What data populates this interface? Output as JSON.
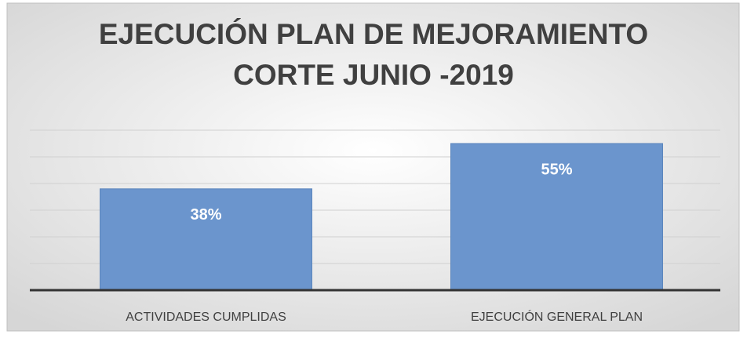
{
  "chart_data": {
    "type": "bar",
    "title": [
      "EJECUCIÓN PLAN DE MEJORAMIENTO",
      "CORTE JUNIO -2019"
    ],
    "categories": [
      "ACTIVIDADES CUMPLIDAS",
      "EJECUCIÓN GENERAL PLAN"
    ],
    "values": [
      38,
      55
    ],
    "value_labels": [
      "38%",
      "55%"
    ],
    "color": "#6b95cd",
    "ylim": [
      0,
      60
    ],
    "yticks": [
      0,
      10,
      20,
      30,
      40,
      50,
      60
    ],
    "grid": true
  }
}
